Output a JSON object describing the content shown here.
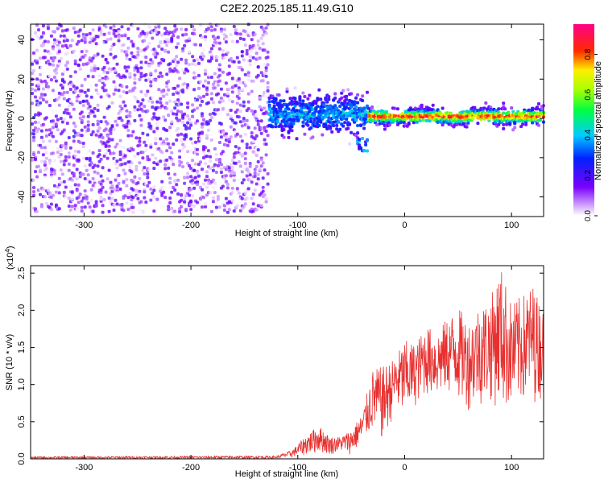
{
  "title": "C2E2.2025.185.11.49.G10",
  "chart_data": [
    {
      "type": "heatmap",
      "title": "C2E2.2025.185.11.49.G10",
      "xlabel": "Height of straight line (km)",
      "ylabel": "Frequency (Hz)",
      "xlim": [
        -350,
        130
      ],
      "ylim": [
        -50,
        48
      ],
      "xticks": [
        "-300",
        "-200",
        "-100",
        "0",
        "100"
      ],
      "yticks": [
        "40",
        "20",
        "0",
        "-20",
        "-40"
      ],
      "grid": false,
      "colorbar": {
        "label": "Normalized spectral amplitude",
        "ticks": [
          "0.0",
          "0.2",
          "0.4",
          "0.6",
          "0.8"
        ],
        "range": [
          0,
          0.95
        ],
        "colormap": "rainbow (white-violet-blue-cyan-green-yellow-red-magenta)"
      },
      "regions": [
        {
          "x": [
            -350,
            -128
          ],
          "freq_center": 0,
          "freq_spread": 48,
          "amplitude": 0.12,
          "pattern": "noise"
        },
        {
          "x": [
            -128,
            -35
          ],
          "freq_center": 2,
          "freq_spread": 10,
          "amplitude": 0.3,
          "pattern": "broad band"
        },
        {
          "x": [
            -35,
            130
          ],
          "freq_center": 1,
          "freq_spread": 4,
          "amplitude": 0.8,
          "pattern": "narrow tone"
        }
      ]
    },
    {
      "type": "line",
      "xlabel": "Height of straight line (km)",
      "ylabel": "SNR (10 * v/v)",
      "scale_label": "(x10",
      "scale_exp": "4",
      "scale_close": ")",
      "xlim": [
        -350,
        130
      ],
      "ylim": [
        0,
        2.6
      ],
      "xticks": [
        "-300",
        "-200",
        "-100",
        "0",
        "100"
      ],
      "yticks": [
        "0.0",
        "0.5",
        "1.0",
        "1.5",
        "2.0",
        "2.5"
      ],
      "grid": false,
      "series": [
        {
          "color": "#e8302f",
          "envelope": {
            "x": [
              -350,
              -120,
              -105,
              -100,
              -90,
              -80,
              -70,
              -60,
              -50,
              -40,
              -30,
              -20,
              -10,
              0,
              10,
              20,
              30,
              40,
              50,
              60,
              70,
              80,
              90,
              100,
              110,
              120,
              130
            ],
            "lower": [
              0.0,
              0.0,
              0.02,
              0.03,
              0.05,
              0.08,
              0.05,
              0.1,
              0.05,
              0.2,
              0.35,
              0.2,
              0.6,
              0.5,
              0.7,
              0.85,
              0.8,
              0.85,
              0.75,
              0.65,
              0.7,
              0.75,
              0.65,
              0.6,
              0.7,
              0.75,
              0.8
            ],
            "upper": [
              0.03,
              0.04,
              0.12,
              0.2,
              0.35,
              0.45,
              0.3,
              0.3,
              0.4,
              0.6,
              1.2,
              1.25,
              1.35,
              1.6,
              1.55,
              1.8,
              1.7,
              1.9,
              2.05,
              1.85,
              2.1,
              2.15,
              2.6,
              2.1,
              2.2,
              2.35,
              2.0
            ]
          }
        }
      ]
    }
  ]
}
